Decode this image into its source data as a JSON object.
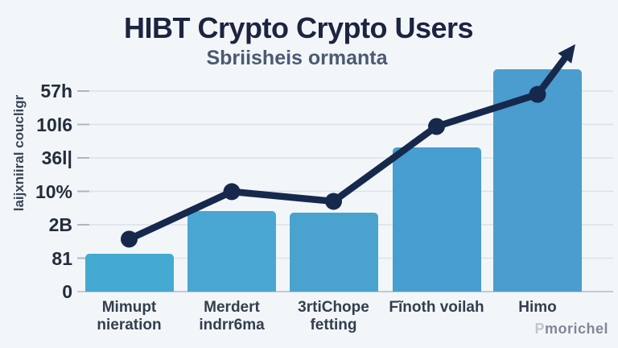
{
  "title": "HIBT Crypto Crypto Users",
  "subtitle": "Sbriisheis ormanta",
  "watermark": {
    "prefix": "P",
    "rest": "morichel"
  },
  "chart_data": {
    "type": "bar",
    "title": "HIBT Crypto Crypto Users",
    "subtitle": "Sbriisheis ormanta",
    "y_axis_title": "laijxniiral coucligr",
    "y_tick_labels": [
      "0",
      "81",
      "2B",
      "10%",
      "36l|",
      "10l6",
      "57h"
    ],
    "y_tick_units": [
      0,
      1,
      2,
      3,
      4,
      5,
      6
    ],
    "ylim_units": [
      0,
      7.5
    ],
    "grid": true,
    "legend": "none",
    "categories": [
      "Mimupt\nnieration",
      "Merdert\nindrr6ma",
      "3rtiChope\nfetting",
      "Fĩnoth voilah",
      "Himo"
    ],
    "series": [
      {
        "name": "bars",
        "type": "bar",
        "values": [
          1.13,
          2.41,
          2.36,
          4.31,
          6.65
        ],
        "colors": [
          "#45AAD2",
          "#4AA7D4",
          "#49A3CE",
          "#479ED0",
          "#4A9DCE"
        ]
      },
      {
        "name": "trend-line",
        "type": "line",
        "values": [
          1.57,
          2.99,
          2.7,
          4.94,
          5.9
        ],
        "color": "#16294D",
        "arrow_end": true,
        "arrow_tip_unit": 7.4
      }
    ],
    "background": "#F2F6F9",
    "grid_color": "#DBE1E7",
    "baseline_color": "#C2C9D1"
  }
}
